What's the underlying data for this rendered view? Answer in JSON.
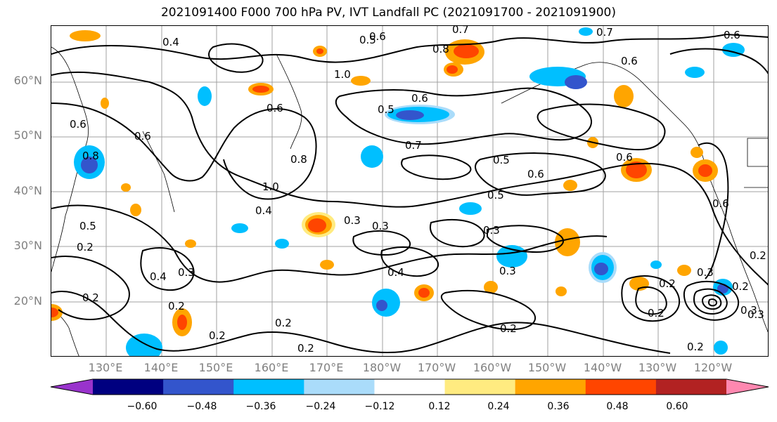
{
  "title": "2021091400 F000 700 hPa PV, IVT Landfall PC (2021091700 - 2021091900)",
  "lat_labels": [
    "60°N",
    "50°N",
    "40°N",
    "30°N",
    "20°N"
  ],
  "lon_labels": [
    "130°E",
    "140°E",
    "150°E",
    "160°E",
    "170°E",
    "180°W",
    "170°W",
    "160°W",
    "150°W",
    "140°W",
    "130°W",
    "120°W"
  ],
  "colorbar": {
    "colors": [
      "#9933cc",
      "#000080",
      "#3355cc",
      "#00bfff",
      "#aadcfa",
      "#ffffff",
      "#ffeb80",
      "#ffa500",
      "#ff4500",
      "#b22222",
      "#ff88b0"
    ],
    "ticks": [
      "−0.60",
      "−0.48",
      "−0.36",
      "−0.24",
      "−0.12",
      "0.12",
      "0.24",
      "0.36",
      "0.48",
      "0.60"
    ]
  },
  "contour_labels": [
    "0.4",
    "0.6",
    "0.5",
    "0.7",
    "0.6",
    "0.8",
    "1.0",
    "0.6",
    "0.5",
    "0.6",
    "0.7",
    "0.5",
    "0.6",
    "0.8",
    "0.6",
    "0.7",
    "0.6",
    "0.8",
    "1.0",
    "0.5",
    "0.6",
    "0.4",
    "0.3",
    "0.3",
    "0.3",
    "0.5",
    "0.4",
    "0.3",
    "0.4",
    "0.3",
    "0.2",
    "0.2",
    "0.2",
    "0.2",
    "0.2",
    "0.2",
    "0.3",
    "0.2",
    "0.2",
    "0.3",
    "0.2",
    "0.2",
    "0.2",
    "0.6",
    "0.3",
    "0.2",
    "0.6"
  ]
}
